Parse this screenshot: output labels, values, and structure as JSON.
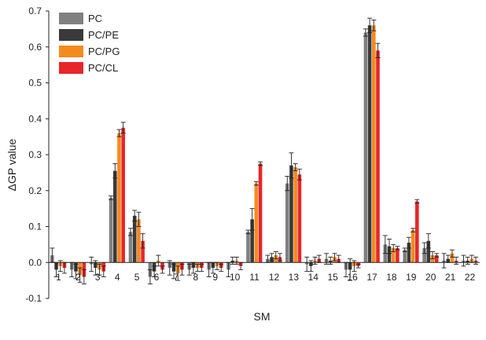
{
  "chart_data": {
    "type": "bar",
    "xlabel": "SM",
    "ylabel": "ΔGP value",
    "ylim": [
      -0.1,
      0.7
    ],
    "yticks": [
      "-0.1",
      "0.0",
      "0.1",
      "0.2",
      "0.3",
      "0.4",
      "0.5",
      "0.6",
      "0.7"
    ],
    "categories": [
      "1",
      "2",
      "3",
      "4",
      "5",
      "6",
      "7",
      "8",
      "9",
      "10",
      "11",
      "12",
      "13",
      "14",
      "15",
      "16",
      "17",
      "18",
      "19",
      "20",
      "21",
      "22"
    ],
    "legend_position": "top-left",
    "series": [
      {
        "name": "PC",
        "color": "#808080",
        "values": [
          0.02,
          -0.02,
          -0.005,
          0.18,
          0.085,
          -0.04,
          -0.015,
          -0.02,
          -0.02,
          -0.02,
          0.085,
          0.01,
          0.22,
          -0.005,
          0.01,
          -0.02,
          0.64,
          0.05,
          0.035,
          0.04,
          0.005,
          0.005
        ],
        "errors": [
          0.02,
          0.02,
          0.02,
          0.005,
          0.01,
          0.02,
          0.02,
          0.015,
          0.02,
          0.02,
          0.005,
          0.01,
          0.02,
          0.02,
          0.015,
          0.02,
          0.01,
          0.025,
          0.005,
          0.015,
          0.02,
          0.015
        ]
      },
      {
        "name": "PC/PE",
        "color": "#3a3a3a",
        "values": [
          -0.02,
          -0.025,
          -0.015,
          0.255,
          0.13,
          -0.025,
          -0.025,
          -0.015,
          -0.015,
          0.005,
          0.12,
          0.015,
          0.27,
          -0.01,
          0.005,
          -0.02,
          0.66,
          0.045,
          0.055,
          0.06,
          0.01,
          0.005
        ],
        "errors": [
          0.02,
          0.02,
          0.02,
          0.02,
          0.015,
          0.015,
          0.02,
          0.015,
          0.015,
          0.01,
          0.03,
          0.01,
          0.035,
          0.015,
          0.01,
          0.03,
          0.02,
          0.02,
          0.015,
          0.02,
          0.01,
          0.01
        ]
      },
      {
        "name": "PC/PG",
        "color": "#f58a1f",
        "values": [
          -0.01,
          -0.035,
          -0.02,
          0.36,
          0.12,
          0.005,
          -0.03,
          -0.015,
          -0.01,
          0.005,
          0.22,
          0.02,
          0.265,
          0.005,
          0.015,
          -0.01,
          0.66,
          0.04,
          0.09,
          0.02,
          0.025,
          0.01
        ],
        "errors": [
          0.015,
          0.02,
          0.015,
          0.01,
          0.02,
          0.015,
          0.02,
          0.01,
          0.01,
          0.01,
          0.005,
          0.01,
          0.01,
          0.01,
          0.01,
          0.015,
          0.015,
          0.01,
          0.005,
          0.01,
          0.01,
          0.01
        ]
      },
      {
        "name": "PC/CL",
        "color": "#e8262a",
        "values": [
          -0.015,
          -0.04,
          -0.025,
          0.375,
          0.06,
          -0.02,
          -0.02,
          -0.015,
          -0.015,
          -0.01,
          0.275,
          0.015,
          0.245,
          0.01,
          0.01,
          -0.01,
          0.59,
          0.04,
          0.17,
          0.02,
          0.005,
          0.005
        ],
        "errors": [
          0.015,
          0.02,
          0.015,
          0.015,
          0.02,
          0.01,
          0.015,
          0.01,
          0.01,
          0.01,
          0.005,
          0.01,
          0.015,
          0.01,
          0.01,
          0.005,
          0.02,
          0.005,
          0.005,
          0.005,
          0.01,
          0.01
        ]
      }
    ]
  }
}
